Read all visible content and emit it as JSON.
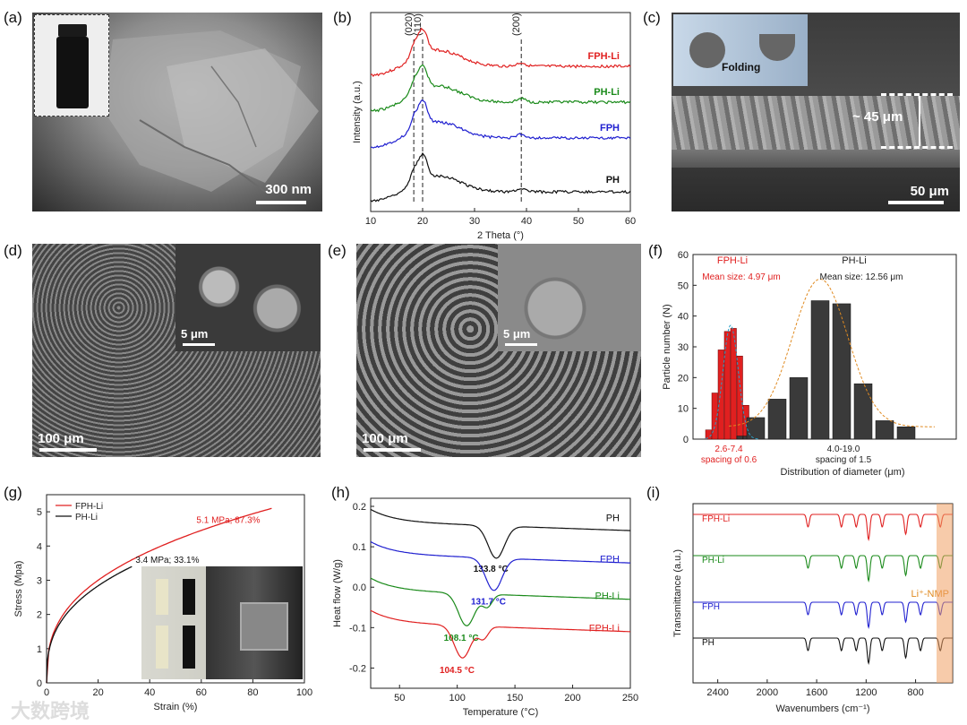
{
  "panels": {
    "a": {
      "label": "(a)",
      "scale_text": "300 nm"
    },
    "b": {
      "label": "(b)"
    },
    "c": {
      "label": "(c)",
      "folding_text": "Folding",
      "thickness_text": "~ 45 μm",
      "scale_text": "50 μm"
    },
    "d": {
      "label": "(d)",
      "scale_main": "100 μm",
      "scale_inset": "5 μm"
    },
    "e": {
      "label": "(e)",
      "scale_main": "100 μm",
      "scale_inset": "5 μm"
    },
    "f": {
      "label": "(f)"
    },
    "g": {
      "label": "(g)"
    },
    "h": {
      "label": "(h)"
    },
    "i": {
      "label": "(i)"
    }
  },
  "watermark": "大数跨境",
  "chart_data": [
    {
      "id": "b",
      "type": "line",
      "xlabel": "2 Theta (°)",
      "ylabel": "Intensity (a.u.)",
      "xlim": [
        10,
        60
      ],
      "xticks": [
        10,
        20,
        30,
        40,
        50,
        60
      ],
      "peak_labels": [
        {
          "text": "(020)",
          "x": 18.3
        },
        {
          "text": "(110)",
          "x": 20.0
        },
        {
          "text": "(200)",
          "x": 39.0
        }
      ],
      "series": [
        {
          "name": "FPH-Li",
          "color": "#e02020",
          "offset": 3.0
        },
        {
          "name": "PH-Li",
          "color": "#1a8a1a",
          "offset": 2.1
        },
        {
          "name": "FPH",
          "color": "#2020d0",
          "offset": 1.2
        },
        {
          "name": "PH",
          "color": "#111111",
          "offset": 0.0
        }
      ]
    },
    {
      "id": "f",
      "type": "bar",
      "xlabel": "Distribution of diameter (μm)",
      "ylabel": "Particle number (N)",
      "ylim": [
        0,
        60
      ],
      "yticks": [
        0,
        10,
        20,
        30,
        40,
        50,
        60
      ],
      "series": [
        {
          "name": "FPH-Li",
          "color": "#e02020",
          "mean_text": "Mean size: 4.97 μm",
          "range_text": "2.6-7.4",
          "spacing_text": "spacing of 0.6",
          "values": [
            3,
            15,
            29,
            35,
            36,
            27,
            11,
            2
          ]
        },
        {
          "name": "PH-Li",
          "color": "#3a3a3a",
          "mean_text": "Mean size: 12.56 μm",
          "range_text": "4.0-19.0",
          "spacing_text": "spacing of 1.5",
          "values": [
            1,
            1,
            7,
            13,
            20,
            45,
            44,
            18,
            6,
            4
          ]
        }
      ]
    },
    {
      "id": "g",
      "type": "line",
      "xlabel": "Strain (%)",
      "ylabel": "Stress (Mpa)",
      "xlim": [
        0,
        100
      ],
      "ylim": [
        0,
        5.5
      ],
      "xticks": [
        0,
        20,
        40,
        60,
        80,
        100
      ],
      "yticks": [
        0,
        1,
        2,
        3,
        4,
        5
      ],
      "series": [
        {
          "name": "FPH-Li",
          "color": "#e02020",
          "end": [
            87.3,
            5.1
          ],
          "annotation": "5.1 MPa; 87.3%"
        },
        {
          "name": "PH-Li",
          "color": "#111111",
          "end": [
            33.1,
            3.4
          ],
          "annotation": "3.4 MPa; 33.1%"
        }
      ]
    },
    {
      "id": "h",
      "type": "line",
      "xlabel": "Temperature (°C)",
      "ylabel": "Heat flow (W/g)",
      "xlim": [
        25,
        250
      ],
      "ylim": [
        -0.25,
        0.22
      ],
      "xticks": [
        50,
        100,
        150,
        200,
        250
      ],
      "yticks": [
        0.2,
        0.1,
        0.0,
        -0.1,
        -0.2
      ],
      "series": [
        {
          "name": "PH",
          "color": "#111111",
          "peak": 133.8,
          "peak_text": "133.8 °C"
        },
        {
          "name": "FPH",
          "color": "#2020d0",
          "peak": 131.7,
          "peak_text": "131.7 °C"
        },
        {
          "name": "PH-Li",
          "color": "#1a8a1a",
          "peak": 108.1,
          "peak_text": "108.1 °C"
        },
        {
          "name": "FPH-Li",
          "color": "#e02020",
          "peak": 104.5,
          "peak_text": "104.5 °C"
        }
      ]
    },
    {
      "id": "i",
      "type": "line",
      "xlabel": "Wavenumbers (cm⁻¹)",
      "ylabel": "Transmittance (a.u.)",
      "xlim": [
        2600,
        500
      ],
      "xticks": [
        2400,
        2000,
        1600,
        1200,
        800
      ],
      "highlight_text": "Li⁺-NMP",
      "series": [
        {
          "name": "FPH-Li",
          "color": "#e02020"
        },
        {
          "name": "PH-Li",
          "color": "#1a8a1a"
        },
        {
          "name": "FPH",
          "color": "#2020d0"
        },
        {
          "name": "PH",
          "color": "#111111"
        }
      ]
    }
  ]
}
